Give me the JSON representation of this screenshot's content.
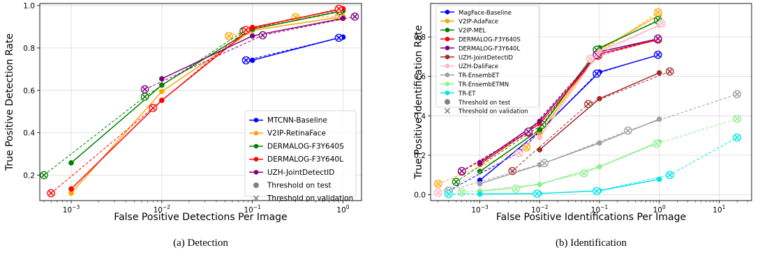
{
  "chart_data": [
    {
      "type": "line",
      "caption": "(a) Detection",
      "xlabel": "False Positive Detections Per Image",
      "ylabel": "True Positive Detection Rate",
      "xscale": "log",
      "xlim": [
        0.00045,
        1.6
      ],
      "ylim": [
        0.08,
        1.01
      ],
      "xticks": [
        {
          "v": 0.001,
          "b": "10",
          "e": "−3"
        },
        {
          "v": 0.01,
          "b": "10",
          "e": "−2"
        },
        {
          "v": 0.1,
          "b": "10",
          "e": "−1"
        },
        {
          "v": 1,
          "b": "10",
          "e": "0"
        }
      ],
      "yticks": [
        0.2,
        0.4,
        0.6,
        0.8,
        1.0
      ],
      "ytick_labels": [
        "0.2",
        "0.4",
        "0.6",
        "0.8",
        "1.0"
      ],
      "grid": true,
      "legend_position": "bottom-right",
      "series": [
        {
          "name": "MTCNN-Baseline",
          "color": "#0000ff",
          "test": [
            [
              0.1,
              0.742
            ],
            [
              0.9,
              0.848
            ],
            [
              1.0,
              0.851
            ]
          ],
          "validation": [
            [
              0.085,
              0.742
            ],
            [
              0.9,
              0.848
            ]
          ]
        },
        {
          "name": "V2IP-RetinaFace",
          "color": "#ffa500",
          "test": [
            [
              0.001,
              0.115
            ],
            [
              0.01,
              0.595
            ],
            [
              0.1,
              0.883
            ],
            [
              1.0,
              0.948
            ]
          ],
          "validation": [
            [
              0.055,
              0.857
            ],
            [
              0.3,
              0.945
            ],
            [
              0.9,
              0.948
            ]
          ]
        },
        {
          "name": "DERMALOG-F3Y640S",
          "color": "#008000",
          "test": [
            [
              0.001,
              0.258
            ],
            [
              0.01,
              0.625
            ],
            [
              0.1,
              0.889
            ],
            [
              1.0,
              0.975
            ]
          ],
          "validation": [
            [
              0.0005,
              0.2
            ],
            [
              0.0065,
              0.57
            ],
            [
              0.08,
              0.88
            ],
            [
              0.92,
              0.975
            ]
          ]
        },
        {
          "name": "DERMALOG-F3Y640L",
          "color": "#ff0000",
          "test": [
            [
              0.001,
              0.135
            ],
            [
              0.01,
              0.553
            ],
            [
              0.1,
              0.897
            ],
            [
              1.0,
              0.985
            ]
          ],
          "validation": [
            [
              0.0006,
              0.115
            ],
            [
              0.008,
              0.517
            ],
            [
              0.085,
              0.885
            ],
            [
              0.9,
              0.985
            ]
          ]
        },
        {
          "name": "UZH-JointDetectID",
          "color": "#800080",
          "test": [
            [
              0.01,
              0.655
            ],
            [
              0.1,
              0.857
            ],
            [
              1.0,
              0.94
            ]
          ],
          "validation": [
            [
              0.0065,
              0.605
            ],
            [
              0.13,
              0.86
            ],
            [
              1.35,
              0.948
            ]
          ]
        }
      ],
      "legend_markers": [
        {
          "label": "Threshold on test",
          "marker": "circle"
        },
        {
          "label": "Threshold on validation",
          "marker": "x"
        }
      ]
    },
    {
      "type": "line",
      "caption": "(b) Identification",
      "xlabel": "False Positive Identifications Per Image",
      "ylabel": "True Positive Identification Rate",
      "xscale": "log",
      "xlim": [
        0.00015,
        35
      ],
      "ylim": [
        -0.03,
        0.97
      ],
      "xticks": [
        {
          "v": 0.001,
          "b": "10",
          "e": "−3"
        },
        {
          "v": 0.01,
          "b": "10",
          "e": "−2"
        },
        {
          "v": 0.1,
          "b": "10",
          "e": "−1"
        },
        {
          "v": 1,
          "b": "10",
          "e": "0"
        },
        {
          "v": 10,
          "b": "10",
          "e": "1"
        }
      ],
      "yticks": [
        0.0,
        0.2,
        0.4,
        0.6,
        0.8
      ],
      "ytick_labels": [
        "0.0",
        "0.2",
        "0.4",
        "0.6",
        "0.8"
      ],
      "grid": true,
      "legend_position": "top-left",
      "series": [
        {
          "name": "MagFace-Baseline",
          "color": "#0000ff",
          "test": [
            [
              0.001,
              0.073
            ],
            [
              0.01,
              0.322
            ],
            [
              0.1,
              0.622
            ],
            [
              1.0,
              0.71
            ]
          ],
          "validation": [
            [
              0.0003,
              0.02
            ],
            [
              0.0045,
              0.213
            ],
            [
              0.09,
              0.614
            ],
            [
              0.95,
              0.71
            ]
          ]
        },
        {
          "name": "V2IP-AdaFace",
          "color": "#ffa500",
          "test": [
            [
              0.01,
              0.31
            ],
            [
              0.1,
              0.735
            ],
            [
              1.0,
              0.912
            ]
          ],
          "validation": [
            [
              0.0002,
              0.055
            ],
            [
              0.006,
              0.24
            ],
            [
              0.07,
              0.688
            ],
            [
              0.95,
              0.925
            ]
          ]
        },
        {
          "name": "V2IP-MEL",
          "color": "#008000",
          "test": [
            [
              0.001,
              0.118
            ],
            [
              0.01,
              0.33
            ],
            [
              0.1,
              0.745
            ],
            [
              1.0,
              0.885
            ]
          ],
          "validation": [
            [
              0.0004,
              0.065
            ],
            [
              0.011,
              0.355
            ],
            [
              0.09,
              0.735
            ],
            [
              0.95,
              0.885
            ]
          ]
        },
        {
          "name": "DERMALOG-F3Y640S",
          "color": "#ff0000",
          "test": [
            [
              0.001,
              0.155
            ],
            [
              0.01,
              0.36
            ],
            [
              0.1,
              0.715
            ],
            [
              1.0,
              0.787
            ]
          ],
          "validation": [
            [
              0.0005,
              0.117
            ],
            [
              0.0065,
              0.315
            ],
            [
              0.095,
              0.705
            ],
            [
              0.95,
              0.787
            ]
          ]
        },
        {
          "name": "DERMALOG-F3Y640L",
          "color": "#800080",
          "test": [
            [
              0.001,
              0.163
            ],
            [
              0.01,
              0.372
            ],
            [
              0.1,
              0.725
            ],
            [
              1.0,
              0.792
            ]
          ],
          "validation": [
            [
              0.0005,
              0.12
            ],
            [
              0.0065,
              0.32
            ],
            [
              0.09,
              0.71
            ],
            [
              0.95,
              0.792
            ]
          ]
        },
        {
          "name": "UZH-JointDetectID",
          "color": "#a52a2a",
          "test": [
            [
              0.01,
              0.228
            ],
            [
              0.1,
              0.487
            ],
            [
              1.0,
              0.618
            ]
          ],
          "validation": [
            [
              0.0035,
              0.12
            ],
            [
              0.065,
              0.46
            ],
            [
              1.5,
              0.625
            ]
          ]
        },
        {
          "name": "UZH-DaliFace",
          "color": "#ffb6c1",
          "test": [
            [
              0.01,
              0.29
            ],
            [
              0.1,
              0.727
            ],
            [
              1.0,
              0.86
            ]
          ],
          "validation": [
            [
              0.0002,
              0.01
            ],
            [
              0.0045,
              0.21
            ],
            [
              0.07,
              0.69
            ],
            [
              1.1,
              0.868
            ]
          ]
        },
        {
          "name": "TR-EnsembET",
          "color": "#a0a0a0",
          "test": [
            [
              0.001,
              0.055
            ],
            [
              0.01,
              0.152
            ],
            [
              0.1,
              0.262
            ],
            [
              1.0,
              0.383
            ]
          ],
          "validation": [
            [
              0.0003,
              0.02
            ],
            [
              0.012,
              0.16
            ],
            [
              0.3,
              0.325
            ],
            [
              20,
              0.51
            ]
          ]
        },
        {
          "name": "TR-EnsembETMN",
          "color": "#90ee90",
          "test": [
            [
              0.001,
              0.018
            ],
            [
              0.01,
              0.052
            ],
            [
              0.1,
              0.142
            ],
            [
              1.0,
              0.268
            ]
          ],
          "validation": [
            [
              0.0005,
              0.012
            ],
            [
              0.004,
              0.03
            ],
            [
              0.055,
              0.108
            ],
            [
              0.9,
              0.258
            ],
            [
              20,
              0.385
            ]
          ]
        },
        {
          "name": "TR-ET",
          "color": "#00e5e5",
          "test": [
            [
              0.001,
              0.003
            ],
            [
              0.01,
              0.006
            ],
            [
              0.1,
              0.02
            ],
            [
              1.0,
              0.078
            ]
          ],
          "validation": [
            [
              0.0003,
              0.003
            ],
            [
              0.009,
              0.005
            ],
            [
              0.09,
              0.018
            ],
            [
              1.5,
              0.1
            ],
            [
              20,
              0.29
            ]
          ]
        }
      ],
      "legend_markers": [
        {
          "label": "Threshold on test",
          "marker": "circle"
        },
        {
          "label": "Threshold on validation",
          "marker": "x"
        }
      ]
    }
  ]
}
